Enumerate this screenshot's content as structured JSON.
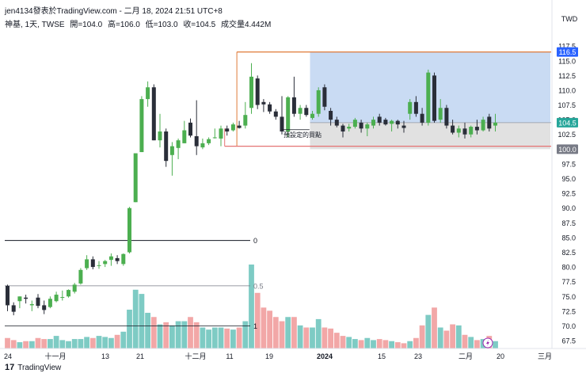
{
  "header": {
    "publish_line": "jen4134發表於TradingView.com - 二月 18, 2024 21:51 UTC+8"
  },
  "symbol_bar": {
    "symbol": "神基, 1天, TWSE",
    "open": "開=104.0",
    "high": "高=106.0",
    "low": "低=103.0",
    "close": "收=104.5",
    "volume": "成交量4.442M"
  },
  "price_scale": {
    "currency": "TWD",
    "ticks": [
      "117.5",
      "115.0",
      "112.5",
      "110.0",
      "107.5",
      "105.0",
      "102.5",
      "100.0",
      "97.5",
      "95.0",
      "92.5",
      "90.0",
      "87.5",
      "85.0",
      "82.5",
      "80.0",
      "77.5",
      "75.0",
      "72.5",
      "70.0",
      "67.5"
    ],
    "labels": {
      "top": "116.5",
      "current": "104.5",
      "bottom": "100.0"
    }
  },
  "time_axis": {
    "ticks": [
      "24",
      "十一月",
      "13",
      "21",
      "十二月",
      "11",
      "19",
      "2024",
      "15",
      "23",
      "二月",
      "20",
      "三月"
    ]
  },
  "annotations": {
    "buy_point_text": "預設定的買點",
    "fib_0": "0",
    "fib_05": "0.5",
    "fib_1": "1"
  },
  "footer": {
    "brand": "TradingView",
    "brand_mark": "17"
  },
  "colors": {
    "up": "#4caf50",
    "down": "#2a2e39",
    "vol_up": "#7ecbc4",
    "vol_down": "#f2a7a7",
    "range_box": "#bcd2f0",
    "lower_box": "#d9d9d9",
    "top_line": "#e07b39",
    "bottom_line": "#e57373",
    "label_blue": "#2962ff",
    "label_green": "#26a69a",
    "label_gray": "#787b86"
  },
  "chart_data": {
    "type": "candlestick",
    "ylim": [
      66.5,
      119
    ],
    "candles": [
      {
        "o": 76.8,
        "h": 77.0,
        "l": 72.5,
        "c": 73.5
      },
      {
        "o": 73.5,
        "h": 74.0,
        "l": 71.8,
        "c": 72.4
      },
      {
        "o": 74.2,
        "h": 75.0,
        "l": 73.0,
        "c": 75.0
      },
      {
        "o": 74.8,
        "h": 75.3,
        "l": 73.8,
        "c": 74.6
      },
      {
        "o": 73.5,
        "h": 74.3,
        "l": 72.5,
        "c": 73.7
      },
      {
        "o": 74.8,
        "h": 75.4,
        "l": 73.0,
        "c": 73.4
      },
      {
        "o": 73.5,
        "h": 74.3,
        "l": 72.0,
        "c": 72.7
      },
      {
        "o": 73.2,
        "h": 75.0,
        "l": 73.0,
        "c": 74.6
      },
      {
        "o": 74.2,
        "h": 75.8,
        "l": 74.0,
        "c": 75.3
      },
      {
        "o": 74.8,
        "h": 76.0,
        "l": 74.3,
        "c": 74.9
      },
      {
        "o": 75.0,
        "h": 76.2,
        "l": 74.8,
        "c": 76.1
      },
      {
        "o": 75.8,
        "h": 77.3,
        "l": 75.5,
        "c": 77.0
      },
      {
        "o": 77.2,
        "h": 79.8,
        "l": 77.0,
        "c": 79.5
      },
      {
        "o": 79.8,
        "h": 82.0,
        "l": 79.5,
        "c": 81.3
      },
      {
        "o": 81.3,
        "h": 81.8,
        "l": 79.6,
        "c": 80.0
      },
      {
        "o": 80.2,
        "h": 81.0,
        "l": 79.7,
        "c": 80.3
      },
      {
        "o": 80.5,
        "h": 81.2,
        "l": 80.0,
        "c": 81.0
      },
      {
        "o": 81.2,
        "h": 82.3,
        "l": 80.2,
        "c": 81.8
      },
      {
        "o": 81.5,
        "h": 82.0,
        "l": 80.5,
        "c": 81.0
      },
      {
        "o": 80.5,
        "h": 82.3,
        "l": 80.2,
        "c": 82.2
      },
      {
        "o": 82.5,
        "h": 90.2,
        "l": 82.3,
        "c": 90.0
      },
      {
        "o": 91.0,
        "h": 99.3,
        "l": 91.0,
        "c": 99.3
      },
      {
        "o": 99.5,
        "h": 109.0,
        "l": 99.5,
        "c": 108.5
      },
      {
        "o": 108.5,
        "h": 111.5,
        "l": 107.2,
        "c": 110.5
      },
      {
        "o": 110.5,
        "h": 111.0,
        "l": 101.5,
        "c": 101.5
      },
      {
        "o": 101.5,
        "h": 106.0,
        "l": 100.3,
        "c": 103.0
      },
      {
        "o": 103.0,
        "h": 103.5,
        "l": 97.0,
        "c": 98.0
      },
      {
        "o": 99.0,
        "h": 101.2,
        "l": 95.5,
        "c": 100.5
      },
      {
        "o": 100.2,
        "h": 101.8,
        "l": 98.3,
        "c": 101.5
      },
      {
        "o": 101.0,
        "h": 104.8,
        "l": 101.0,
        "c": 103.2
      },
      {
        "o": 104.5,
        "h": 105.2,
        "l": 102.0,
        "c": 102.3
      },
      {
        "o": 102.2,
        "h": 108.3,
        "l": 99.0,
        "c": 100.5
      },
      {
        "o": 100.3,
        "h": 101.8,
        "l": 100.0,
        "c": 101.0
      },
      {
        "o": 101.0,
        "h": 102.0,
        "l": 100.7,
        "c": 101.7
      },
      {
        "o": 102.0,
        "h": 103.5,
        "l": 101.8,
        "c": 102.0
      },
      {
        "o": 101.8,
        "h": 104.0,
        "l": 100.5,
        "c": 103.5
      },
      {
        "o": 103.5,
        "h": 104.0,
        "l": 102.3,
        "c": 103.0
      },
      {
        "o": 103.2,
        "h": 104.5,
        "l": 103.0,
        "c": 104.2
      },
      {
        "o": 104.0,
        "h": 104.8,
        "l": 103.5,
        "c": 103.6
      },
      {
        "o": 104.0,
        "h": 108.0,
        "l": 103.5,
        "c": 105.8
      },
      {
        "o": 107.0,
        "h": 114.6,
        "l": 106.0,
        "c": 112.3
      },
      {
        "o": 112.0,
        "h": 112.5,
        "l": 106.8,
        "c": 107.5
      },
      {
        "o": 108.0,
        "h": 108.5,
        "l": 106.3,
        "c": 107.6
      },
      {
        "o": 107.6,
        "h": 108.0,
        "l": 106.0,
        "c": 106.4
      },
      {
        "o": 106.4,
        "h": 106.8,
        "l": 105.0,
        "c": 105.5
      },
      {
        "o": 105.5,
        "h": 109.0,
        "l": 102.5,
        "c": 103.0
      },
      {
        "o": 103.0,
        "h": 109.0,
        "l": 102.0,
        "c": 108.8
      },
      {
        "o": 108.8,
        "h": 112.3,
        "l": 105.5,
        "c": 106.0
      },
      {
        "o": 106.0,
        "h": 107.5,
        "l": 105.0,
        "c": 107.0
      },
      {
        "o": 107.0,
        "h": 107.5,
        "l": 105.5,
        "c": 105.8
      },
      {
        "o": 105.3,
        "h": 106.5,
        "l": 105.0,
        "c": 106.0
      },
      {
        "o": 106.0,
        "h": 110.5,
        "l": 105.5,
        "c": 110.0
      },
      {
        "o": 110.5,
        "h": 111.0,
        "l": 106.6,
        "c": 107.2
      },
      {
        "o": 106.5,
        "h": 107.0,
        "l": 104.0,
        "c": 105.0
      },
      {
        "o": 105.0,
        "h": 105.5,
        "l": 103.7,
        "c": 104.0
      },
      {
        "o": 104.0,
        "h": 104.3,
        "l": 102.0,
        "c": 103.0
      },
      {
        "o": 103.5,
        "h": 104.3,
        "l": 103.0,
        "c": 103.8
      },
      {
        "o": 103.8,
        "h": 105.3,
        "l": 103.5,
        "c": 105.0
      },
      {
        "o": 104.5,
        "h": 105.0,
        "l": 102.8,
        "c": 103.5
      },
      {
        "o": 103.5,
        "h": 104.5,
        "l": 102.2,
        "c": 104.2
      },
      {
        "o": 104.0,
        "h": 105.5,
        "l": 103.5,
        "c": 105.0
      },
      {
        "o": 105.5,
        "h": 106.0,
        "l": 104.0,
        "c": 104.5
      },
      {
        "o": 105.0,
        "h": 105.3,
        "l": 104.0,
        "c": 104.2
      },
      {
        "o": 104.3,
        "h": 105.0,
        "l": 103.0,
        "c": 104.8
      },
      {
        "o": 104.8,
        "h": 105.0,
        "l": 103.5,
        "c": 104.2
      },
      {
        "o": 104.0,
        "h": 104.8,
        "l": 102.8,
        "c": 103.6
      },
      {
        "o": 106.0,
        "h": 108.5,
        "l": 105.0,
        "c": 108.0
      },
      {
        "o": 108.0,
        "h": 109.0,
        "l": 105.5,
        "c": 106.0
      },
      {
        "o": 106.0,
        "h": 107.0,
        "l": 104.0,
        "c": 104.5
      },
      {
        "o": 104.5,
        "h": 113.5,
        "l": 104.0,
        "c": 113.0
      },
      {
        "o": 112.5,
        "h": 113.0,
        "l": 104.5,
        "c": 104.8
      },
      {
        "o": 105.0,
        "h": 108.5,
        "l": 104.5,
        "c": 107.0
      },
      {
        "o": 107.0,
        "h": 107.5,
        "l": 103.5,
        "c": 104.0
      },
      {
        "o": 104.0,
        "h": 105.0,
        "l": 102.5,
        "c": 102.8
      },
      {
        "o": 102.8,
        "h": 104.0,
        "l": 102.0,
        "c": 103.5
      },
      {
        "o": 103.5,
        "h": 104.5,
        "l": 101.8,
        "c": 102.5
      },
      {
        "o": 102.5,
        "h": 104.0,
        "l": 102.0,
        "c": 103.8
      },
      {
        "o": 103.8,
        "h": 105.0,
        "l": 102.5,
        "c": 103.2
      },
      {
        "o": 103.2,
        "h": 105.5,
        "l": 103.0,
        "c": 105.0
      },
      {
        "o": 105.5,
        "h": 106.0,
        "l": 103.0,
        "c": 103.5
      },
      {
        "o": 104.0,
        "h": 106.0,
        "l": 103.0,
        "c": 104.5
      }
    ],
    "volume_max": 8.0,
    "volumes": [
      1.0,
      0.8,
      0.6,
      0.7,
      0.7,
      1.0,
      0.9,
      0.9,
      1.2,
      0.8,
      0.7,
      0.9,
      0.9,
      1.1,
      1.0,
      1.2,
      1.1,
      1.0,
      1.3,
      1.6,
      3.7,
      5.6,
      5.2,
      3.4,
      3.0,
      2.3,
      2.5,
      2.2,
      2.6,
      2.6,
      3.0,
      2.5,
      2.0,
      1.8,
      2.0,
      2.0,
      1.9,
      1.8,
      2.0,
      2.6,
      8.0,
      5.3,
      3.9,
      3.6,
      3.0,
      2.6,
      3.0,
      3.0,
      2.2,
      2.0,
      2.0,
      2.8,
      2.0,
      1.9,
      1.5,
      1.2,
      1.1,
      0.9,
      0.8,
      1.0,
      0.8,
      0.9,
      0.8,
      0.7,
      0.6,
      0.5,
      0.7,
      1.0,
      2.2,
      3.2,
      3.9,
      2.0,
      1.7,
      2.3,
      2.2,
      1.3,
      1.1,
      0.8,
      0.9,
      1.2,
      0.7
    ]
  }
}
